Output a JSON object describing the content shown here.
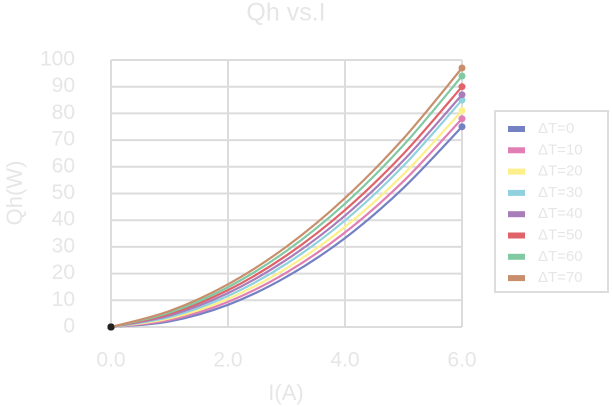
{
  "chart_data": {
    "type": "line",
    "title": "Qh vs.I",
    "xlabel": "I(A)",
    "ylabel": "Qh(W)",
    "x": [
      0,
      1,
      2,
      3,
      4,
      5,
      6
    ],
    "series": [
      {
        "name": "ΔT=0",
        "color": "#7482c4",
        "values": [
          0,
          2.1,
          8.3,
          18.8,
          33.3,
          52.1,
          75
        ]
      },
      {
        "name": "ΔT=10",
        "color": "#e17eb3",
        "values": [
          0,
          2.6,
          9.4,
          20.4,
          35.4,
          54.6,
          78
        ]
      },
      {
        "name": "ΔT=20",
        "color": "#fdf08a",
        "values": [
          0,
          3.2,
          10.5,
          22.0,
          37.5,
          57.2,
          81
        ]
      },
      {
        "name": "ΔT=30",
        "color": "#8fd1de",
        "values": [
          0,
          3.7,
          11.6,
          23.7,
          39.9,
          60.4,
          85
        ]
      },
      {
        "name": "ΔT=40",
        "color": "#a97cba",
        "values": [
          0,
          4.3,
          12.7,
          25.2,
          41.7,
          62.4,
          87
        ]
      },
      {
        "name": "ΔT=50",
        "color": "#e0636a",
        "values": [
          0,
          4.9,
          13.8,
          26.8,
          43.8,
          64.9,
          90
        ]
      },
      {
        "name": "ΔT=60",
        "color": "#80c9a2",
        "values": [
          0,
          5.4,
          14.9,
          28.5,
          46.2,
          68.1,
          94
        ]
      },
      {
        "name": "ΔT=70",
        "color": "#c98e6c",
        "values": [
          0,
          6.0,
          16.0,
          30.1,
          48.3,
          70.6,
          97
        ]
      }
    ],
    "xlim": [
      0,
      6
    ],
    "xticks": [
      {
        "value": 0,
        "label": "0.0"
      },
      {
        "value": 2,
        "label": "2.0"
      },
      {
        "value": 4,
        "label": "4.0"
      },
      {
        "value": 6,
        "label": "6.0"
      }
    ],
    "ylim": [
      0,
      100
    ],
    "yticks": [
      0,
      10,
      20,
      30,
      40,
      50,
      60,
      70,
      80,
      90,
      100
    ],
    "grid": true,
    "legend": "right"
  }
}
